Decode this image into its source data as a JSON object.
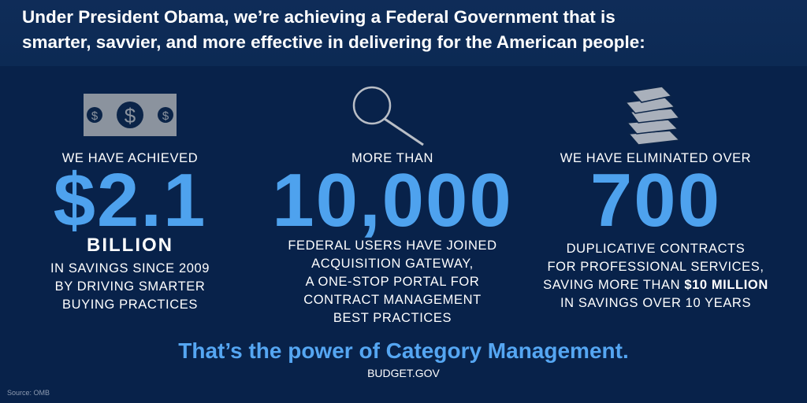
{
  "header": {
    "line1": "Under President Obama, we’re achieving a Federal Government that is",
    "line2": "smarter, savvier, and more effective in delivering for the American people:"
  },
  "stats": [
    {
      "icon": "dollar-coins-icon",
      "intro": "WE HAVE ACHIEVED",
      "value": "$2.1",
      "unit": "BILLION",
      "lines": [
        "IN SAVINGS SINCE 2009",
        "BY DRIVING SMARTER",
        "BUYING PRACTICES"
      ]
    },
    {
      "icon": "magnifying-glass-icon",
      "intro": "MORE THAN",
      "value": "10,000",
      "lines": [
        "FEDERAL USERS HAVE JOINED",
        "ACQUISITION GATEWAY,",
        "A ONE-STOP PORTAL FOR",
        "CONTRACT MANAGEMENT",
        "BEST PRACTICES"
      ]
    },
    {
      "icon": "stack-of-books-icon",
      "intro": "WE HAVE ELIMINATED OVER",
      "value": "700",
      "lines": [
        "DUPLICATIVE CONTRACTS",
        "FOR PROFESSIONAL SERVICES,",
        "SAVING MORE THAN",
        "IN SAVINGS OVER 10 YEARS"
      ],
      "highlight": "$10 MILLION"
    }
  ],
  "footer": {
    "tagline": "That’s the power of Category Management.",
    "site": "BUDGET.GOV",
    "source": "Source: OMB"
  },
  "colors": {
    "background": "#08224a",
    "accent": "#4ea2ee",
    "text": "#ffffff"
  }
}
